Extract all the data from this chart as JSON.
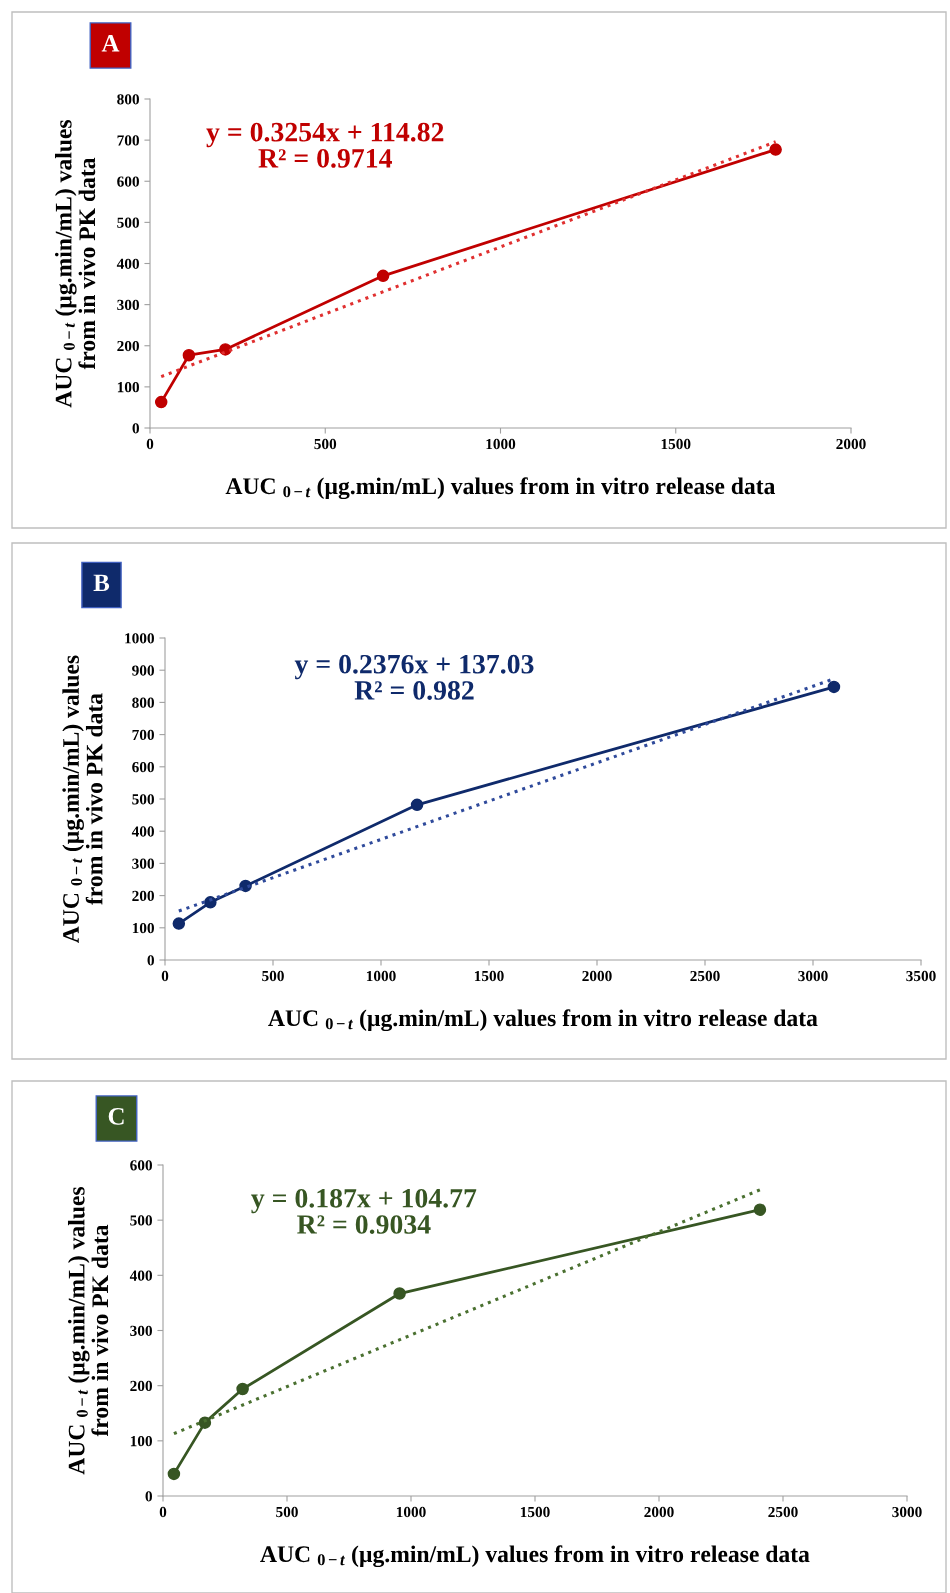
{
  "chart_data": [
    {
      "type": "line",
      "title": "A",
      "color": "#c00000",
      "xlabel": "AUC $_{0−t}$ (µg.min/mL) values from in vitro release data",
      "ylabel": "AUC $_{0−t}$ (µg.min/mL) values\nfrom in vivo PK data",
      "annotations": [
        "y = 0.3254x + 114.82\nR² = 0.9714"
      ],
      "xlim": [
        0,
        2000
      ],
      "xticks": [
        0,
        500,
        1000,
        1500,
        2000
      ],
      "ylim": [
        0,
        800
      ],
      "yticks": [
        0,
        100,
        200,
        300,
        400,
        500,
        600,
        700,
        800
      ],
      "grid": false,
      "legend": false,
      "series": [
        {
          "color": "#c00000",
          "x": [
            32,
            111,
            215,
            665,
            1785
          ],
          "values": [
            63,
            177,
            191,
            370,
            677
          ],
          "marker": "circle",
          "line_style": "solid"
        },
        {
          "color": "#e03030",
          "x": [
            32,
            1785
          ],
          "values": [
            125,
            696
          ],
          "marker": "none",
          "line_style": "dotted"
        }
      ]
    },
    {
      "type": "line",
      "title": "B",
      "color": "#0f2a6b",
      "xlabel": "AUC $_{0−t}$ (µg.min/mL) values from in vitro release data",
      "ylabel": "AUC $_{0−t}$ (µg.min/mL) values\nfrom in vivo PK data",
      "annotations": [
        "y = 0.2376x + 137.03\nR² = 0.982"
      ],
      "xlim": [
        0,
        3500
      ],
      "xticks": [
        0,
        500,
        1000,
        1500,
        2000,
        2500,
        3000,
        3500
      ],
      "ylim": [
        0,
        1000
      ],
      "yticks": [
        0,
        100,
        200,
        300,
        400,
        500,
        600,
        700,
        800,
        900,
        1000
      ],
      "grid": false,
      "legend": false,
      "series": [
        {
          "color": "#0f2a6b",
          "x": [
            64,
            210,
            373,
            1167,
            3097
          ],
          "values": [
            113,
            179,
            230,
            482,
            848
          ],
          "marker": "circle",
          "line_style": "solid"
        },
        {
          "color": "#2f4a9b",
          "x": [
            64,
            3100
          ],
          "values": [
            152,
            874
          ],
          "marker": "none",
          "line_style": "dotted"
        }
      ]
    },
    {
      "type": "line",
      "title": "C",
      "color": "#375623",
      "xlabel": "AUC $_{0−t}$ (µg.min/mL) values from in vitro release data",
      "ylabel": "AUC $_{0−t}$ (µg.min/mL) values\nfrom in vivo PK data",
      "annotations": [
        "y = 0.187x + 104.77\nR² = 0.9034"
      ],
      "xlim": [
        0,
        3000
      ],
      "xticks": [
        0,
        500,
        1000,
        1500,
        2000,
        2500,
        3000
      ],
      "ylim": [
        0,
        600
      ],
      "yticks": [
        0,
        100,
        200,
        300,
        400,
        500,
        600
      ],
      "grid": false,
      "legend": false,
      "series": [
        {
          "color": "#375623",
          "x": [
            44,
            169,
            321,
            954,
            2407
          ],
          "values": [
            40,
            133,
            194,
            367,
            519
          ],
          "marker": "circle",
          "line_style": "solid"
        },
        {
          "color": "#4a7030",
          "x": [
            44,
            2407
          ],
          "values": [
            113,
            555
          ],
          "marker": "none",
          "line_style": "dotted"
        }
      ]
    }
  ]
}
